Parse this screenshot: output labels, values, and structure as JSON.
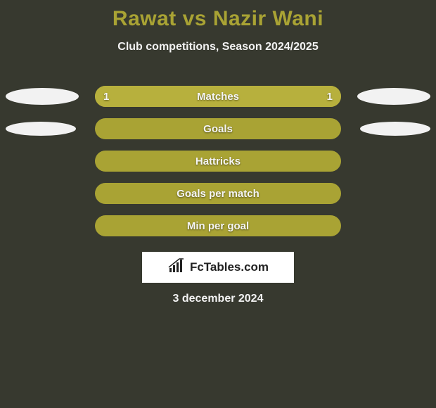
{
  "colors": {
    "background": "#37392f",
    "title": "#a9a334",
    "subtitle": "#f2f2f2",
    "bar_track": "#a9a334",
    "bar_fill": "#b7b03d",
    "bar_text": "#f5f5f5",
    "ellipse": "#f2f2f2",
    "brand_bg": "#ffffff",
    "brand_text": "#222222",
    "date_text": "#f2f2f2"
  },
  "header": {
    "title": "Rawat vs Nazir Wani",
    "subtitle": "Club competitions, Season 2024/2025"
  },
  "stats": [
    {
      "label": "Matches",
      "left_value": "1",
      "right_value": "1",
      "left_pct": 50,
      "right_pct": 50,
      "ellipse_left": {
        "w": 104,
        "h": 24
      },
      "ellipse_right": {
        "w": 104,
        "h": 24
      }
    },
    {
      "label": "Goals",
      "left_value": "",
      "right_value": "",
      "left_pct": 0,
      "right_pct": 0,
      "ellipse_left": {
        "w": 100,
        "h": 20
      },
      "ellipse_right": {
        "w": 100,
        "h": 20
      }
    },
    {
      "label": "Hattricks",
      "left_value": "",
      "right_value": "",
      "left_pct": 0,
      "right_pct": 0,
      "ellipse_left": null,
      "ellipse_right": null
    },
    {
      "label": "Goals per match",
      "left_value": "",
      "right_value": "",
      "left_pct": 0,
      "right_pct": 0,
      "ellipse_left": null,
      "ellipse_right": null
    },
    {
      "label": "Min per goal",
      "left_value": "",
      "right_value": "",
      "left_pct": 0,
      "right_pct": 0,
      "ellipse_left": null,
      "ellipse_right": null
    }
  ],
  "brand": {
    "icon_name": "bar-chart-icon",
    "text": "FcTables.com",
    "icon_color": "#222222"
  },
  "footer": {
    "date": "3 december 2024"
  }
}
